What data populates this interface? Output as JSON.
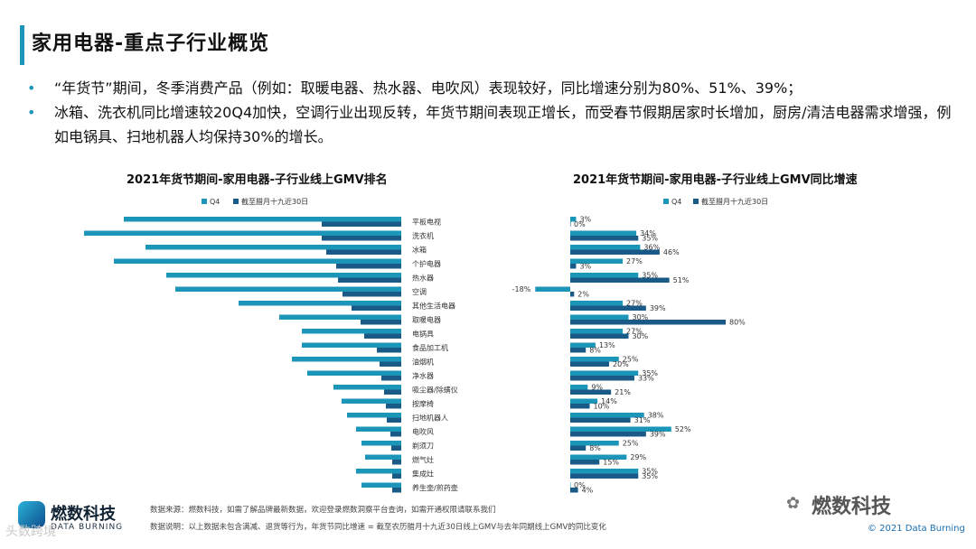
{
  "header": {
    "title": "家用电器-重点子行业概览"
  },
  "bullets": [
    {
      "marker": "•",
      "text": "“年货节”期间，冬季消费产品（例如：取暖电器、热水器、电吹风）表现较好，同比增速分别为80%、51%、39%；"
    },
    {
      "marker": "•",
      "text": "冰箱、洗衣机同比增速较20Q4加快，空调行业出现反转，年货节期间表现正增长，而受春节假期居家时长增加，厨房/清洁电器需求增强，例如电锅具、扫地机器人均保持30%的增长。"
    }
  ],
  "colors": {
    "q4": "#1c96b8",
    "period": "#1a5a86",
    "accent": "#1c96b8"
  },
  "chart_data": [
    {
      "type": "bar",
      "orientation": "horizontal",
      "title": "2021年货节期间-家用电器-子行业线上GMV排名",
      "legend": {
        "position": "top",
        "entries": [
          "Q4",
          "截至腊月十九近30日"
        ]
      },
      "categories": [
        "平板电视",
        "洗衣机",
        "冰箱",
        "个护电器",
        "热水器",
        "空调",
        "其他生活电器",
        "取暖电器",
        "电锅具",
        "食品加工机",
        "油烟机",
        "净水器",
        "吸尘器/除螨仪",
        "按摩椅",
        "扫地机器人",
        "电吹风",
        "剃须刀",
        "燃气灶",
        "集成灶",
        "养生壶/煎药壶"
      ],
      "series": [
        {
          "name": "Q4",
          "values": [
            307,
            351,
            283,
            318,
            260,
            250,
            180,
            135,
            110,
            110,
            121,
            104,
            75,
            66,
            60,
            50,
            44,
            40,
            50,
            44
          ]
        },
        {
          "name": "截至腊月十九近30日",
          "values": [
            88,
            88,
            83,
            72,
            70,
            65,
            55,
            45,
            41,
            27,
            24,
            22,
            19,
            17,
            16,
            12,
            11,
            10,
            10,
            10
          ]
        }
      ],
      "value_labels": false
    },
    {
      "type": "bar",
      "orientation": "horizontal",
      "title": "2021年货节期间-家用电器-子行业线上GMV同比增速",
      "legend": {
        "position": "top",
        "entries": [
          "Q4",
          "截至腊月十九近30日"
        ]
      },
      "categories": [
        "平板电视",
        "洗衣机",
        "冰箱",
        "个护电器",
        "热水器",
        "空调",
        "其他生活电器",
        "取暖电器",
        "电锅具",
        "食品加工机",
        "油烟机",
        "净水器",
        "吸尘器/除螨仪",
        "按摩椅",
        "扫地机器人",
        "电吹风",
        "剃须刀",
        "燃气灶",
        "集成灶",
        "养生壶/煎药壶"
      ],
      "series": [
        {
          "name": "Q4",
          "values": [
            3,
            34,
            36,
            27,
            35,
            -18,
            27,
            30,
            27,
            13,
            25,
            35,
            9,
            14,
            38,
            52,
            25,
            29,
            35,
            0
          ]
        },
        {
          "name": "截至腊月十九近30日",
          "values": [
            0,
            35,
            46,
            3,
            51,
            2,
            39,
            80,
            30,
            8,
            20,
            33,
            21,
            10,
            31,
            39,
            8,
            15,
            35,
            4
          ]
        }
      ],
      "unit": "%"
    }
  ],
  "footer": {
    "logo_name": "燃数科技",
    "logo_sub": "DATA BURNING",
    "source": "数据来源：燃数科技，如需了解品牌最新数据，欢迎登录燃数洞察平台查询，如需开通权限请联系我们",
    "note": "数据说明：以上数据未包含满减、退货等行为，年货节同比增速 = 截至农历腊月十九近30日线上GMV与去年同期线上GMV的同比变化",
    "wechat_name": "燃数科技",
    "copyright": "© 2021 Data Burning",
    "watermark": "头数跨境"
  }
}
